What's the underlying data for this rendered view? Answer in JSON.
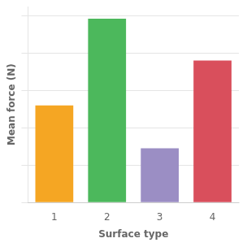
{
  "chart_data": {
    "type": "bar",
    "categories": [
      "1",
      "2",
      "3",
      "4"
    ],
    "values": [
      5.2,
      9.85,
      2.9,
      7.6
    ],
    "colors": [
      "#F5A623",
      "#4CB85C",
      "#9B8EC4",
      "#D94F5C"
    ],
    "xlabel": "Surface type",
    "ylabel": "Mean force (N)",
    "ylim": [
      0,
      10.5
    ],
    "yticks": [
      0,
      2.0,
      4.0,
      6.0,
      8.0,
      10.0
    ],
    "grid": true,
    "tick_labels": "x"
  }
}
